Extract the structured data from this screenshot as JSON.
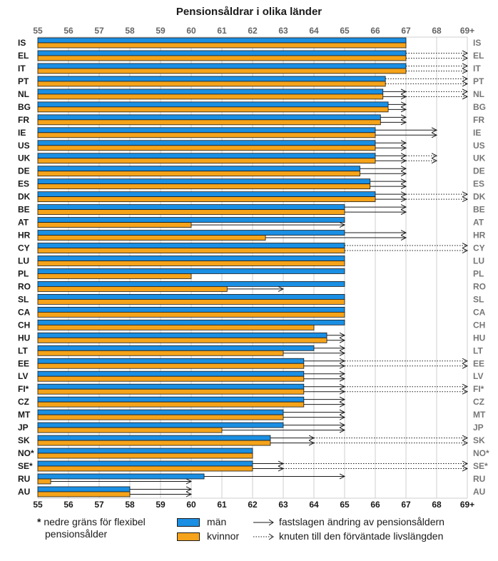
{
  "chart_data": {
    "type": "bar",
    "title": "Pensionsåldrar i olika länder",
    "xlim": [
      55,
      69
    ],
    "x_ticks": [
      "55",
      "56",
      "57",
      "58",
      "59",
      "60",
      "61",
      "62",
      "63",
      "64",
      "65",
      "66",
      "67",
      "68",
      "69+"
    ],
    "categories": [
      "IS",
      "EL",
      "IT",
      "PT",
      "NL",
      "BG",
      "FR",
      "IE",
      "US",
      "UK",
      "DE",
      "ES",
      "DK",
      "BE",
      "AT",
      "HR",
      "CY",
      "LU",
      "PL",
      "RO",
      "SL",
      "CA",
      "CH",
      "HU",
      "LT",
      "EE",
      "LV",
      "FI*",
      "CZ",
      "MT",
      "JP",
      "SK",
      "NO*",
      "SE*",
      "RU",
      "AU"
    ],
    "series": [
      {
        "name": "män",
        "color": "#1a8fe3",
        "values": [
          67,
          67,
          67,
          66.33,
          66.25,
          66.42,
          66.17,
          66,
          66,
          66,
          65.5,
          65.83,
          66,
          65,
          65,
          65,
          65,
          65,
          65,
          65,
          65,
          65,
          65,
          64.42,
          64,
          63.67,
          63.67,
          63.67,
          63.67,
          63,
          63,
          62.58,
          62,
          62,
          60.42,
          58
        ]
      },
      {
        "name": "kvinnor",
        "color": "#f5a31a",
        "values": [
          67,
          67,
          67,
          66.33,
          66.25,
          66.42,
          66.17,
          66,
          66,
          66,
          65.5,
          65.83,
          66,
          65,
          60,
          62.42,
          65,
          65,
          60,
          61.17,
          65,
          65,
          64,
          64.42,
          63,
          63.67,
          63.67,
          63.67,
          63.67,
          63,
          61,
          62.58,
          62,
          62,
          55.42,
          58
        ]
      }
    ],
    "changes": [
      {
        "country": "EL",
        "men": [
          {
            "to": 69,
            "type": "dotted"
          }
        ],
        "women": [
          {
            "to": 69,
            "type": "dotted"
          }
        ]
      },
      {
        "country": "IT",
        "men": [
          {
            "to": 69,
            "type": "dotted"
          }
        ],
        "women": [
          {
            "to": 69,
            "type": "dotted"
          }
        ]
      },
      {
        "country": "PT",
        "men": [
          {
            "to": 69,
            "type": "dotted"
          }
        ],
        "women": [
          {
            "to": 69,
            "type": "dotted"
          }
        ]
      },
      {
        "country": "NL",
        "men": [
          {
            "to": 67,
            "type": "solid"
          },
          {
            "to": 69,
            "type": "dotted"
          }
        ],
        "women": [
          {
            "to": 67,
            "type": "solid"
          },
          {
            "to": 69,
            "type": "dotted"
          }
        ]
      },
      {
        "country": "BG",
        "men": [
          {
            "to": 67,
            "type": "solid"
          }
        ],
        "women": [
          {
            "to": 67,
            "type": "solid"
          }
        ]
      },
      {
        "country": "FR",
        "men": [
          {
            "to": 67,
            "type": "solid"
          }
        ],
        "women": [
          {
            "to": 67,
            "type": "solid"
          }
        ]
      },
      {
        "country": "IE",
        "men": [
          {
            "to": 68,
            "type": "solid"
          }
        ],
        "women": [
          {
            "to": 68,
            "type": "solid"
          }
        ]
      },
      {
        "country": "US",
        "men": [
          {
            "to": 67,
            "type": "solid"
          }
        ],
        "women": [
          {
            "to": 67,
            "type": "solid"
          }
        ]
      },
      {
        "country": "UK",
        "men": [
          {
            "to": 67,
            "type": "solid"
          },
          {
            "to": 68,
            "type": "dotted"
          }
        ],
        "women": [
          {
            "to": 67,
            "type": "solid"
          },
          {
            "to": 68,
            "type": "dotted"
          }
        ]
      },
      {
        "country": "DE",
        "men": [
          {
            "to": 67,
            "type": "solid"
          }
        ],
        "women": [
          {
            "to": 67,
            "type": "solid"
          }
        ]
      },
      {
        "country": "ES",
        "men": [
          {
            "to": 67,
            "type": "solid"
          }
        ],
        "women": [
          {
            "to": 67,
            "type": "solid"
          }
        ]
      },
      {
        "country": "DK",
        "men": [
          {
            "to": 67,
            "type": "solid"
          },
          {
            "to": 69,
            "type": "dotted"
          }
        ],
        "women": [
          {
            "to": 67,
            "type": "solid"
          },
          {
            "to": 69,
            "type": "dotted"
          }
        ]
      },
      {
        "country": "BE",
        "men": [
          {
            "to": 67,
            "type": "solid"
          }
        ],
        "women": [
          {
            "to": 67,
            "type": "solid"
          }
        ]
      },
      {
        "country": "AT",
        "men": [],
        "women": [
          {
            "to": 65,
            "type": "solid"
          }
        ]
      },
      {
        "country": "HR",
        "men": [
          {
            "to": 67,
            "type": "solid"
          }
        ],
        "women": [
          {
            "to": 67,
            "type": "solid"
          }
        ]
      },
      {
        "country": "CY",
        "men": [
          {
            "to": 69,
            "type": "dotted"
          }
        ],
        "women": [
          {
            "to": 69,
            "type": "dotted"
          }
        ]
      },
      {
        "country": "RO",
        "men": [],
        "women": [
          {
            "to": 63,
            "type": "solid"
          }
        ]
      },
      {
        "country": "HU",
        "men": [
          {
            "to": 65,
            "type": "solid"
          }
        ],
        "women": [
          {
            "to": 65,
            "type": "solid"
          }
        ]
      },
      {
        "country": "LT",
        "men": [
          {
            "to": 65,
            "type": "solid"
          }
        ],
        "women": [
          {
            "to": 65,
            "type": "solid"
          }
        ]
      },
      {
        "country": "EE",
        "men": [
          {
            "to": 65,
            "type": "solid"
          },
          {
            "to": 69,
            "type": "dotted"
          }
        ],
        "women": [
          {
            "to": 65,
            "type": "solid"
          },
          {
            "to": 69,
            "type": "dotted"
          }
        ]
      },
      {
        "country": "LV",
        "men": [
          {
            "to": 65,
            "type": "solid"
          }
        ],
        "women": [
          {
            "to": 65,
            "type": "solid"
          }
        ]
      },
      {
        "country": "FI*",
        "men": [
          {
            "to": 65,
            "type": "solid"
          },
          {
            "to": 69,
            "type": "dotted"
          }
        ],
        "women": [
          {
            "to": 65,
            "type": "solid"
          },
          {
            "to": 69,
            "type": "dotted"
          }
        ]
      },
      {
        "country": "CZ",
        "men": [
          {
            "to": 65,
            "type": "solid"
          }
        ],
        "women": [
          {
            "to": 65,
            "type": "solid"
          }
        ]
      },
      {
        "country": "MT",
        "men": [
          {
            "to": 65,
            "type": "solid"
          }
        ],
        "women": [
          {
            "to": 65,
            "type": "solid"
          }
        ]
      },
      {
        "country": "JP",
        "men": [
          {
            "to": 65,
            "type": "solid"
          }
        ],
        "women": [
          {
            "to": 65,
            "type": "solid"
          }
        ]
      },
      {
        "country": "SK",
        "men": [
          {
            "to": 64,
            "type": "solid"
          },
          {
            "to": 69,
            "type": "dotted"
          }
        ],
        "women": [
          {
            "to": 64,
            "type": "solid"
          },
          {
            "to": 69,
            "type": "dotted"
          }
        ]
      },
      {
        "country": "SE*",
        "men": [
          {
            "to": 63,
            "type": "solid"
          },
          {
            "to": 69,
            "type": "dotted"
          }
        ],
        "women": [
          {
            "to": 63,
            "type": "solid"
          },
          {
            "to": 69,
            "type": "dotted"
          }
        ]
      },
      {
        "country": "RU",
        "men": [
          {
            "to": 65,
            "type": "solid"
          }
        ],
        "women": [
          {
            "to": 60,
            "type": "solid"
          }
        ]
      },
      {
        "country": "AU",
        "men": [
          {
            "to": 60,
            "type": "solid"
          }
        ],
        "women": [
          {
            "to": 60,
            "type": "solid"
          }
        ]
      }
    ],
    "grid": true
  },
  "legend": {
    "note_star": "*",
    "note_line1": "nedre gräns för flexibel",
    "note_line2": "pensionsålder",
    "men_label": "män",
    "women_label": "kvinnor",
    "solid_label": "fastslagen ändring av pensionsåldern",
    "dotted_label": "knuten till den förväntade livslängden"
  }
}
